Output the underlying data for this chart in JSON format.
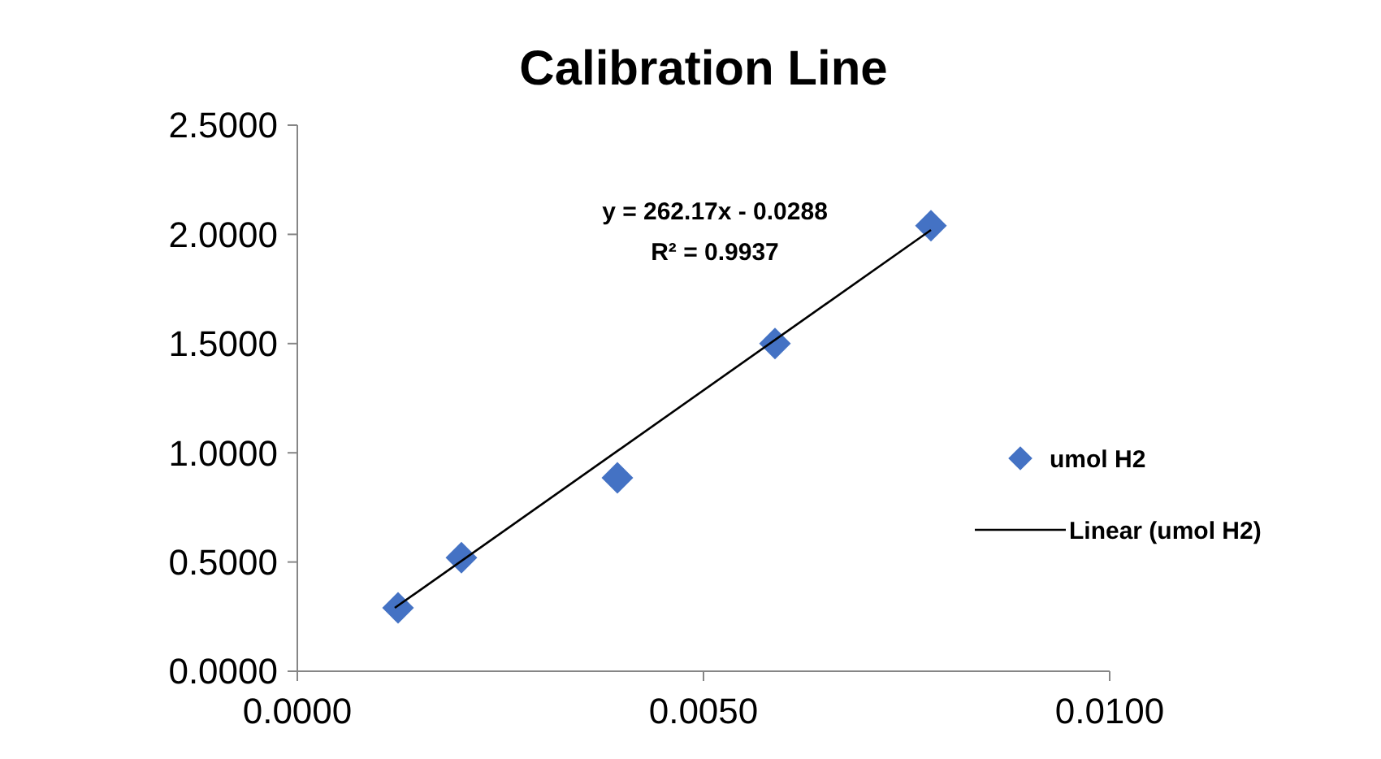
{
  "chart_data": {
    "type": "scatter",
    "title": "Calibration Line",
    "xlim": [
      0,
      0.01
    ],
    "xticks": [
      {
        "value": 0,
        "label": "0.0000"
      },
      {
        "value": 0.005,
        "label": "0.0050"
      },
      {
        "value": 0.01,
        "label": "0.0100"
      }
    ],
    "ylim": [
      0,
      2.5
    ],
    "yticks": [
      {
        "value": 0,
        "label": "0.0000"
      },
      {
        "value": 0.5,
        "label": "0.5000"
      },
      {
        "value": 1,
        "label": "1.0000"
      },
      {
        "value": 1.5,
        "label": "1.5000"
      },
      {
        "value": 2,
        "label": "2.0000"
      },
      {
        "value": 2.5,
        "label": "2.5000"
      }
    ],
    "grid": false,
    "legend": "right",
    "annotations": [
      "y = 262.17x - 0.0288",
      "R² = 0.9937"
    ],
    "series": [
      {
        "name": "umol H2",
        "marker": "diamond",
        "color": "#4472c4",
        "x": [
          0.00124,
          0.00202,
          0.00394,
          0.00588,
          0.0078
        ],
        "values": [
          0.29,
          0.52,
          0.885,
          1.5,
          2.04
        ]
      },
      {
        "name": "Linear (umol H2)",
        "type": "line",
        "line_style": "solid",
        "color": "#000000",
        "x": [
          0.0012,
          0.0078
        ],
        "values": [
          0.29,
          2.02
        ]
      }
    ]
  }
}
